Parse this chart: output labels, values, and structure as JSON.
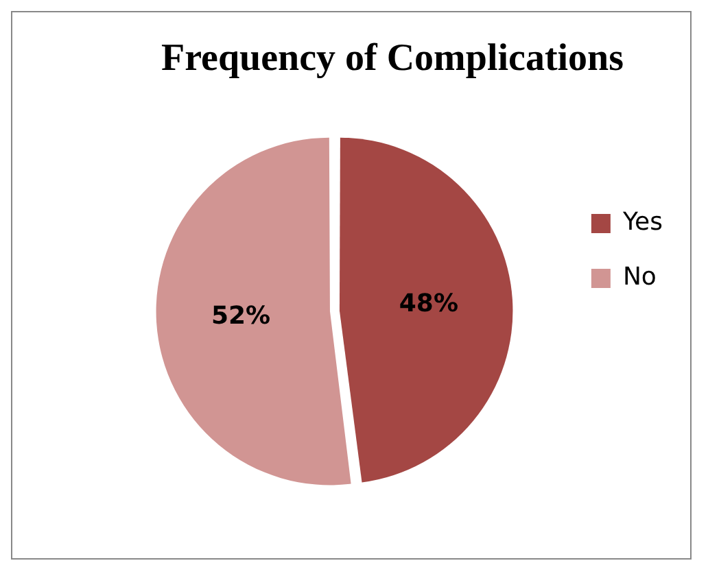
{
  "chart_data": {
    "type": "pie",
    "title": "Frequency of Complications",
    "categories": [
      "Yes",
      "No"
    ],
    "values": [
      48,
      52
    ],
    "colors": [
      "#a44744",
      "#d19593"
    ],
    "value_labels": [
      "48%",
      "52%"
    ],
    "legend": "right"
  }
}
